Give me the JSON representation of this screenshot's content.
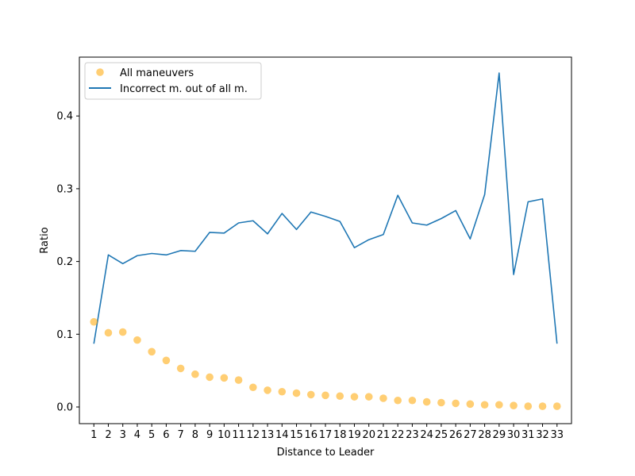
{
  "chart_data": {
    "type": "scatter",
    "title": "",
    "xlabel": "Distance to Leader",
    "ylabel": "Ratio",
    "xlim": [
      0.0,
      34.0
    ],
    "ylim": [
      -0.0229,
      0.4809
    ],
    "x_ticks": [
      1,
      2,
      3,
      4,
      5,
      6,
      7,
      8,
      9,
      10,
      11,
      12,
      13,
      14,
      15,
      16,
      17,
      18,
      19,
      20,
      21,
      22,
      23,
      24,
      25,
      26,
      27,
      28,
      29,
      30,
      31,
      32,
      33
    ],
    "y_ticks": [
      0.0,
      0.1,
      0.2,
      0.3,
      0.4
    ],
    "y_tick_labels": [
      "0.0",
      "0.1",
      "0.2",
      "0.3",
      "0.4"
    ],
    "legend_position": "upper-left",
    "grid": false,
    "series": [
      {
        "name": "All maneuvers",
        "kind": "scatter",
        "color": "#FFA500",
        "opacity": 0.55,
        "x": [
          1,
          2,
          3,
          4,
          5,
          6,
          7,
          8,
          9,
          10,
          11,
          12,
          13,
          14,
          15,
          16,
          17,
          18,
          19,
          20,
          21,
          22,
          23,
          24,
          25,
          26,
          27,
          28,
          29,
          30,
          31,
          32,
          33
        ],
        "values": [
          0.117,
          0.102,
          0.103,
          0.092,
          0.076,
          0.064,
          0.053,
          0.045,
          0.041,
          0.04,
          0.037,
          0.027,
          0.023,
          0.021,
          0.019,
          0.017,
          0.016,
          0.015,
          0.014,
          0.014,
          0.012,
          0.009,
          0.009,
          0.007,
          0.006,
          0.005,
          0.004,
          0.003,
          0.003,
          0.002,
          0.001,
          0.001,
          0.001
        ]
      },
      {
        "name": "Incorrect m. out of all m.",
        "kind": "line",
        "color": "#1f77b4",
        "x": [
          1,
          2,
          3,
          4,
          5,
          6,
          7,
          8,
          9,
          10,
          11,
          12,
          13,
          14,
          15,
          16,
          17,
          18,
          19,
          20,
          21,
          22,
          23,
          24,
          25,
          26,
          27,
          28,
          29,
          30,
          31,
          32,
          33
        ],
        "values": [
          0.087,
          0.209,
          0.197,
          0.208,
          0.211,
          0.209,
          0.215,
          0.214,
          0.24,
          0.239,
          0.253,
          0.256,
          0.238,
          0.266,
          0.244,
          0.268,
          0.262,
          0.255,
          0.219,
          0.23,
          0.237,
          0.291,
          0.253,
          0.25,
          0.259,
          0.27,
          0.231,
          0.292,
          0.459,
          0.182,
          0.282,
          0.286,
          0.087
        ]
      }
    ]
  }
}
